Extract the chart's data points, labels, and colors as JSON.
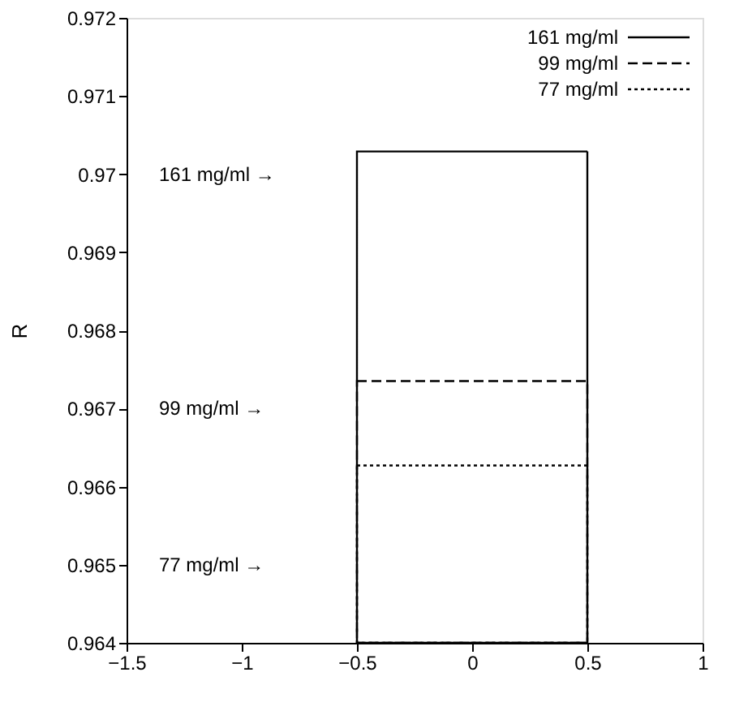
{
  "chart_data": {
    "type": "bar",
    "ylabel": "R",
    "x": [
      0
    ],
    "series": [
      {
        "name": "161 mg/ml",
        "color": "#000000",
        "values": [
          0.97029
        ],
        "line_style": "solid"
      },
      {
        "name": "99 mg/ml",
        "color": "#000000",
        "values": [
          0.96735
        ],
        "line_style": "dashed"
      },
      {
        "name": "77 mg/ml",
        "color": "#000000",
        "values": [
          0.96627
        ],
        "line_style": "dotted"
      }
    ],
    "xlim": [
      -1.5,
      1
    ],
    "xticks": [
      -1.5,
      -1,
      -0.5,
      0,
      0.5,
      1
    ],
    "ylim": [
      0.964,
      0.972
    ],
    "yticks": [
      0.964,
      0.965,
      0.966,
      0.967,
      0.968,
      0.969,
      0.97,
      0.971,
      0.972
    ],
    "annotations": [
      "161 mg/ml →",
      "99 mg/ml →",
      "77 mg/ml →"
    ],
    "grid": false,
    "legend": "top right"
  }
}
